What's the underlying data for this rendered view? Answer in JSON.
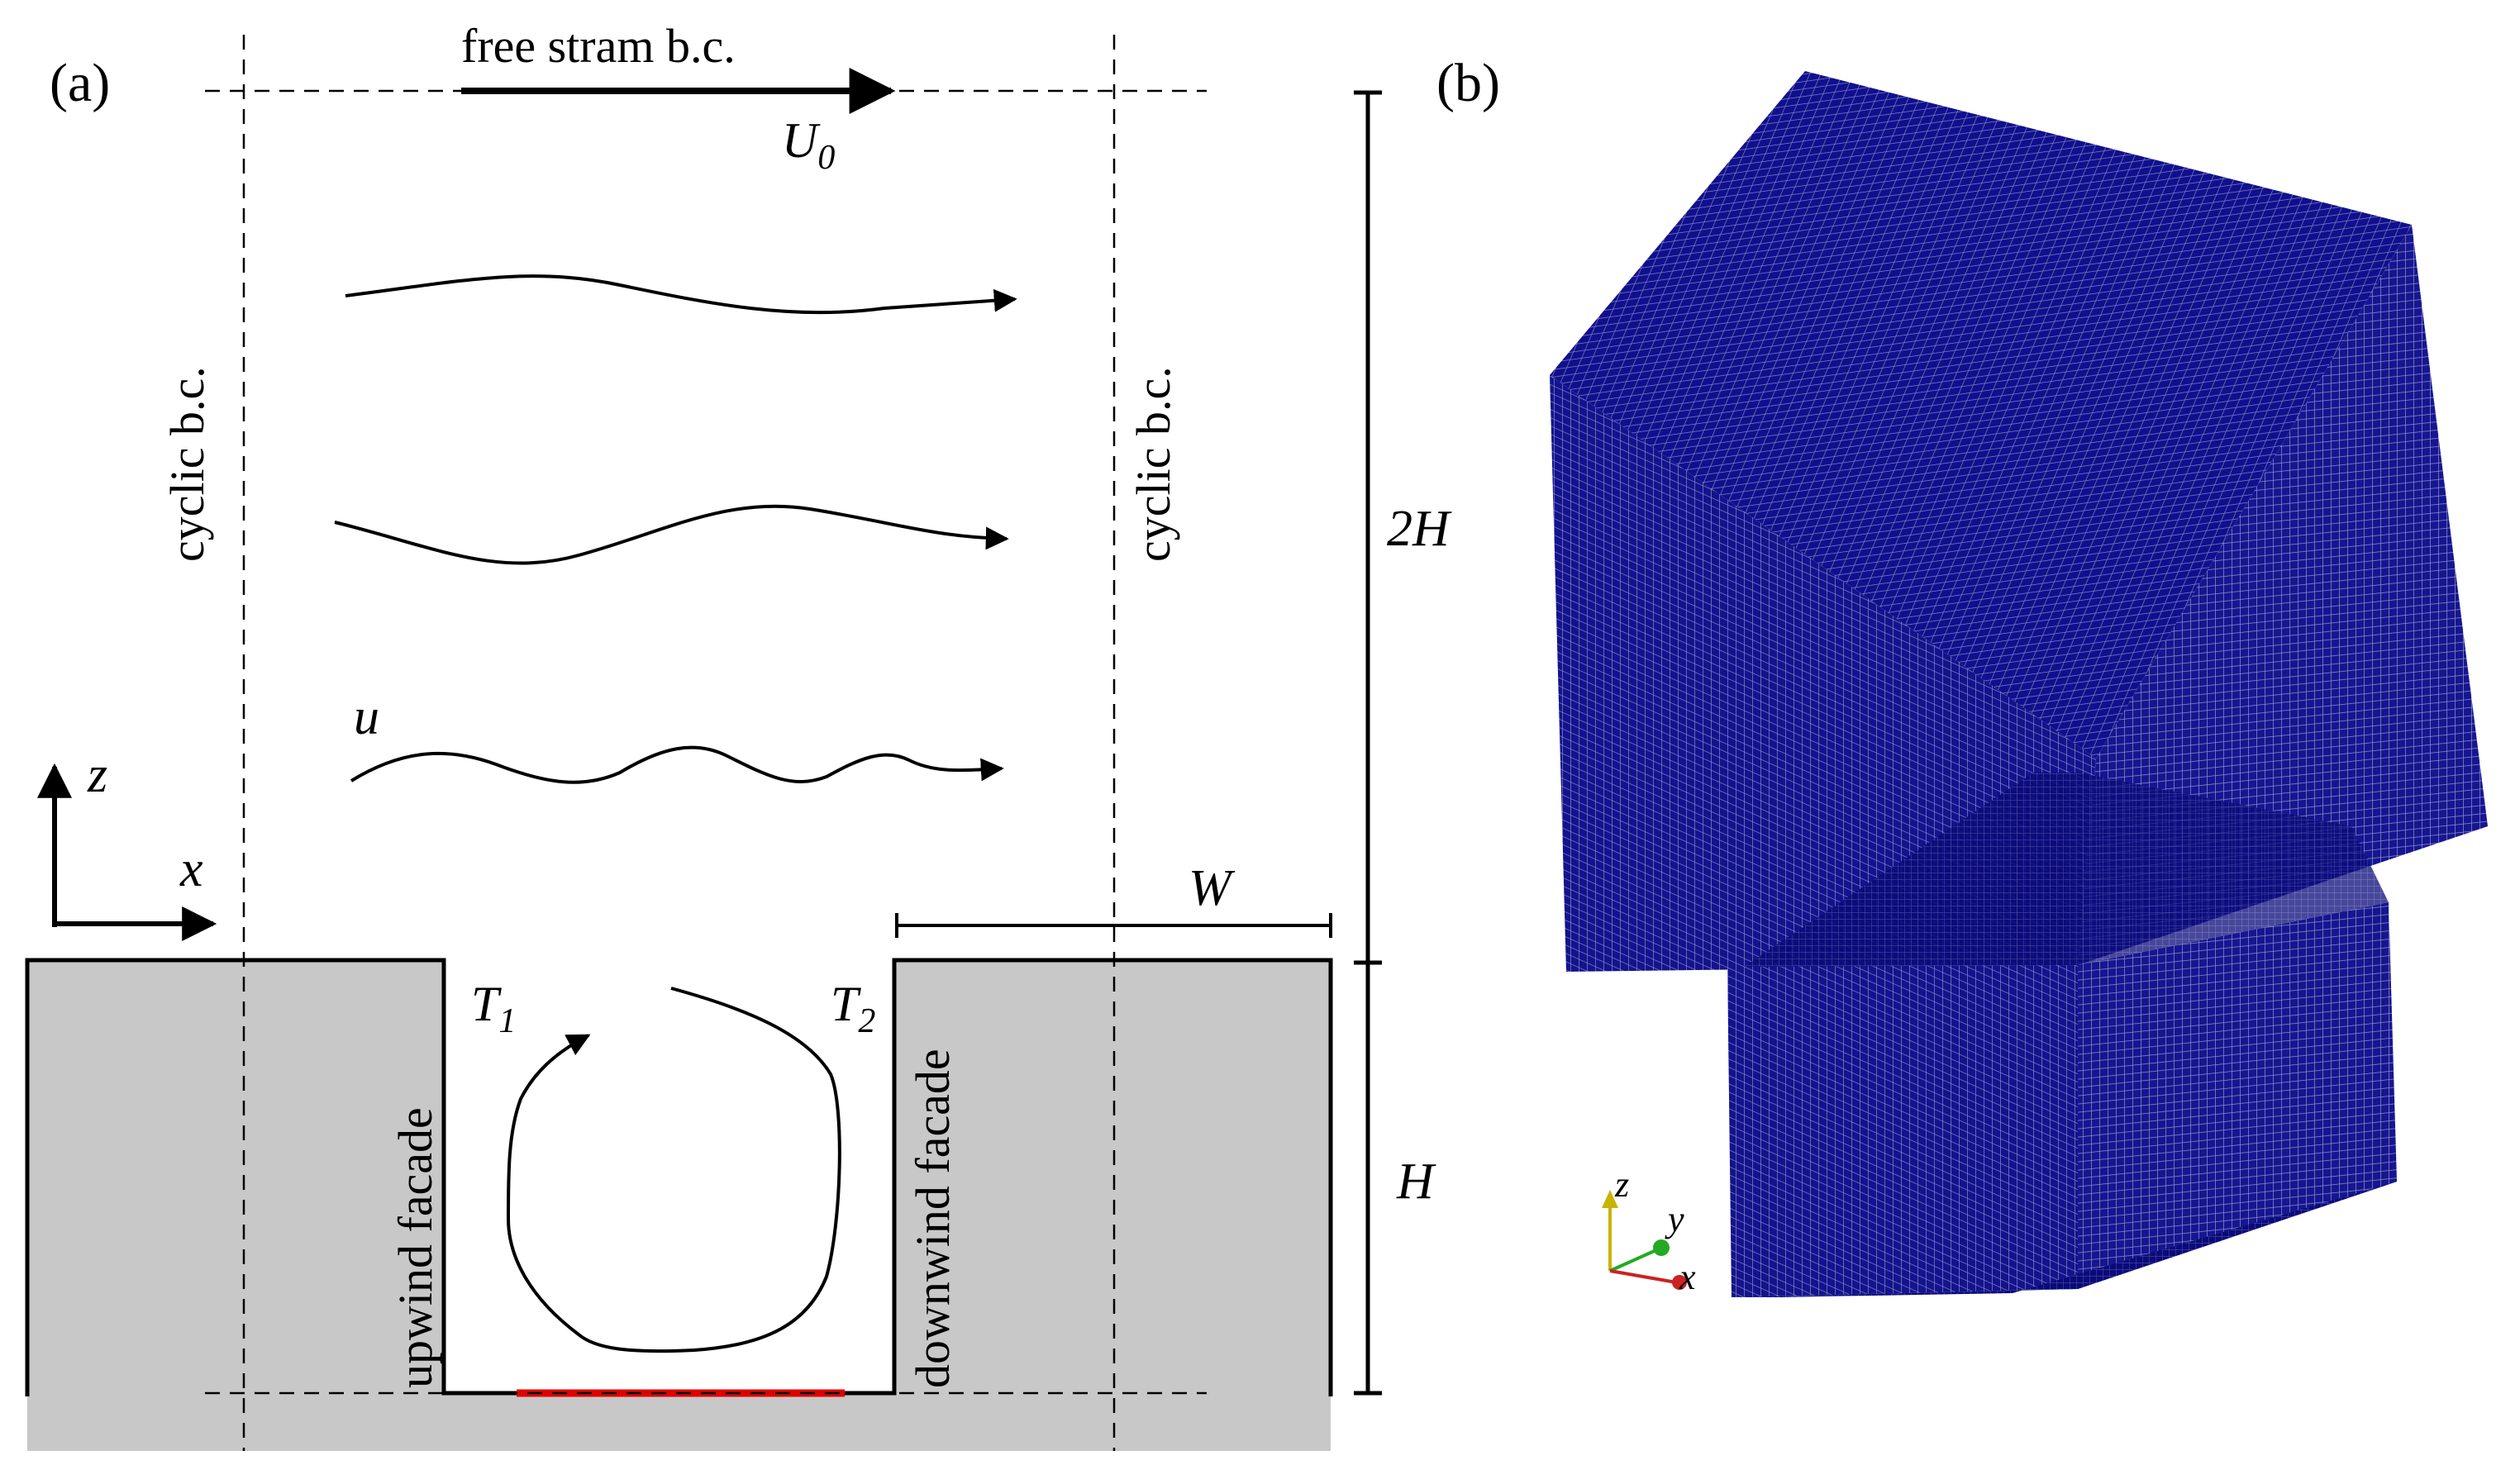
{
  "panel_a": {
    "label": "(a)",
    "top_bc": "free stram b.c.",
    "freestream_velocity": "U",
    "freestream_velocity_sub": "0",
    "side_bc_left": "cyclic b.c.",
    "side_bc_right": "cyclic b.c.",
    "velocity_label": "u",
    "axis_z": "z",
    "axis_x": "x",
    "width_label": "W",
    "height_upper": "2H",
    "height_lower": "H",
    "temp_left": "T",
    "temp_left_sub": "1",
    "temp_right": "T",
    "temp_right_sub": "2",
    "upwind": "upwind facade",
    "downwind": "downwind facade",
    "colors": {
      "building": "#c8c8c8",
      "heated_floor": "#e00000",
      "lines": "#000000"
    }
  },
  "panel_b": {
    "label": "(b)",
    "mesh_color": "#0f0f8c",
    "axes": {
      "z": "z",
      "y": "y",
      "x": "x"
    },
    "axis_colors": {
      "z": "#c8b400",
      "y": "#22aa22",
      "x": "#cc2222"
    }
  }
}
